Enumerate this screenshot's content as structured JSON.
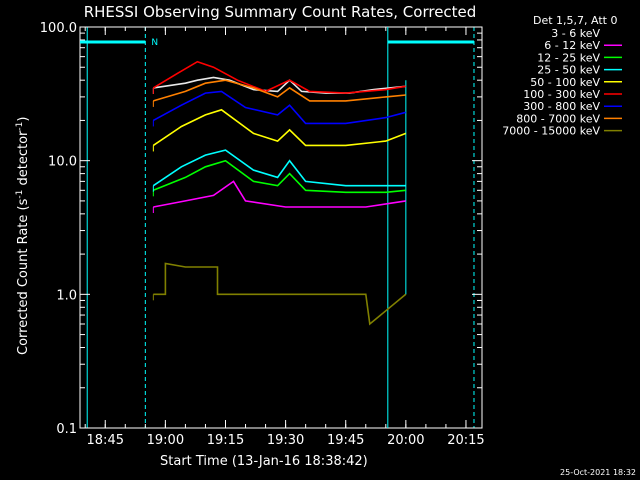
{
  "chart_data": {
    "type": "line",
    "title": "RHESSI Observing Summary Count Rates, Corrected",
    "xlabel": "Start Time (13-Jan-16 18:38:42)",
    "ylabel_main": "Corrected Count Rate (s",
    "ylabel_sup1": "-1",
    "ylabel_mid": " detector",
    "ylabel_sup2": "-1",
    "ylabel_end": ")",
    "yscale": "log",
    "ylim": [
      0.1,
      100
    ],
    "y_ticks": [
      "100.0",
      "10.0",
      "1.0",
      "0.1"
    ],
    "xlim": [
      "18:38:42",
      "20:19:00"
    ],
    "x_ticks": [
      "18:45",
      "19:00",
      "19:15",
      "19:30",
      "19:45",
      "20:00",
      "20:15"
    ],
    "legend_header": "Det 1,5,7, Att 0",
    "night_label": "N",
    "data_start": "18:57:00",
    "data_end": "20:00:00",
    "series": [
      {
        "name": "3 - 6 keV",
        "color": "#000000",
        "x": [
          "18:57",
          "19:05",
          "19:08",
          "19:12",
          "19:16",
          "19:22",
          "19:28",
          "19:31",
          "19:34",
          "19:40",
          "19:46",
          "19:52",
          "19:56",
          "20:00"
        ],
        "y": [
          35,
          38,
          40,
          42,
          40,
          34,
          33,
          40,
          33,
          32,
          32,
          34,
          35,
          36
        ]
      },
      {
        "name": "6 - 12 keV",
        "color": "#ff00ff",
        "x": [
          "18:57",
          "19:05",
          "19:12",
          "19:17",
          "19:20",
          "19:30",
          "19:40",
          "19:50",
          "20:00"
        ],
        "y": [
          4.5,
          5.0,
          5.5,
          7,
          5,
          4.5,
          4.5,
          4.5,
          5
        ]
      },
      {
        "name": "12 - 25 keV",
        "color": "#00ff00",
        "x": [
          "18:57",
          "19:05",
          "19:10",
          "19:15",
          "19:22",
          "19:28",
          "19:31",
          "19:35",
          "19:45",
          "19:55",
          "20:00"
        ],
        "y": [
          6,
          7.5,
          9,
          10,
          7,
          6.5,
          8,
          6,
          5.8,
          5.8,
          6
        ]
      },
      {
        "name": "25 - 50 keV",
        "color": "#00ffff",
        "x": [
          "18:57",
          "19:04",
          "19:10",
          "19:15",
          "19:22",
          "19:28",
          "19:31",
          "19:35",
          "19:45",
          "19:55",
          "20:00"
        ],
        "y": [
          6.5,
          9,
          11,
          12,
          8.5,
          7.5,
          10,
          7,
          6.5,
          6.5,
          6.5
        ]
      },
      {
        "name": "50 - 100 keV",
        "color": "#ffff00",
        "x": [
          "18:57",
          "19:04",
          "19:10",
          "19:14",
          "19:22",
          "19:28",
          "19:31",
          "19:35",
          "19:45",
          "19:55",
          "20:00"
        ],
        "y": [
          13,
          18,
          22,
          24,
          16,
          14,
          17,
          13,
          13,
          14,
          16
        ]
      },
      {
        "name": "100 - 300 keV",
        "color": "#ff0000",
        "x": [
          "18:57",
          "19:03",
          "19:08",
          "19:12",
          "19:18",
          "19:25",
          "19:31",
          "19:36",
          "19:45",
          "19:55",
          "20:00"
        ],
        "y": [
          35,
          45,
          55,
          50,
          40,
          33,
          40,
          33,
          32,
          34,
          36
        ]
      },
      {
        "name": "300 - 800 keV",
        "color": "#0000ff",
        "x": [
          "18:57",
          "19:04",
          "19:10",
          "19:14",
          "19:20",
          "19:28",
          "19:31",
          "19:35",
          "19:45",
          "19:55",
          "20:00"
        ],
        "y": [
          20,
          26,
          32,
          33,
          25,
          22,
          26,
          19,
          19,
          21,
          23
        ]
      },
      {
        "name": "800 - 7000 keV",
        "color": "#ff8000",
        "x": [
          "18:57",
          "19:05",
          "19:10",
          "19:15",
          "19:22",
          "19:28",
          "19:31",
          "19:36",
          "19:45",
          "19:55",
          "20:00"
        ],
        "y": [
          28,
          33,
          38,
          40,
          35,
          30,
          35,
          28,
          28,
          30,
          31
        ]
      },
      {
        "name": "7000 - 15000 keV",
        "color": "#808000",
        "x": [
          "18:57",
          "19:00",
          "19:00",
          "19:05",
          "19:13",
          "19:13",
          "19:50",
          "19:51",
          "20:00"
        ],
        "y": [
          1.0,
          1.0,
          1.7,
          1.6,
          1.6,
          1.0,
          1.0,
          0.6,
          1.0
        ]
      }
    ],
    "timestamp": "25-Oct-2021 18:32"
  }
}
